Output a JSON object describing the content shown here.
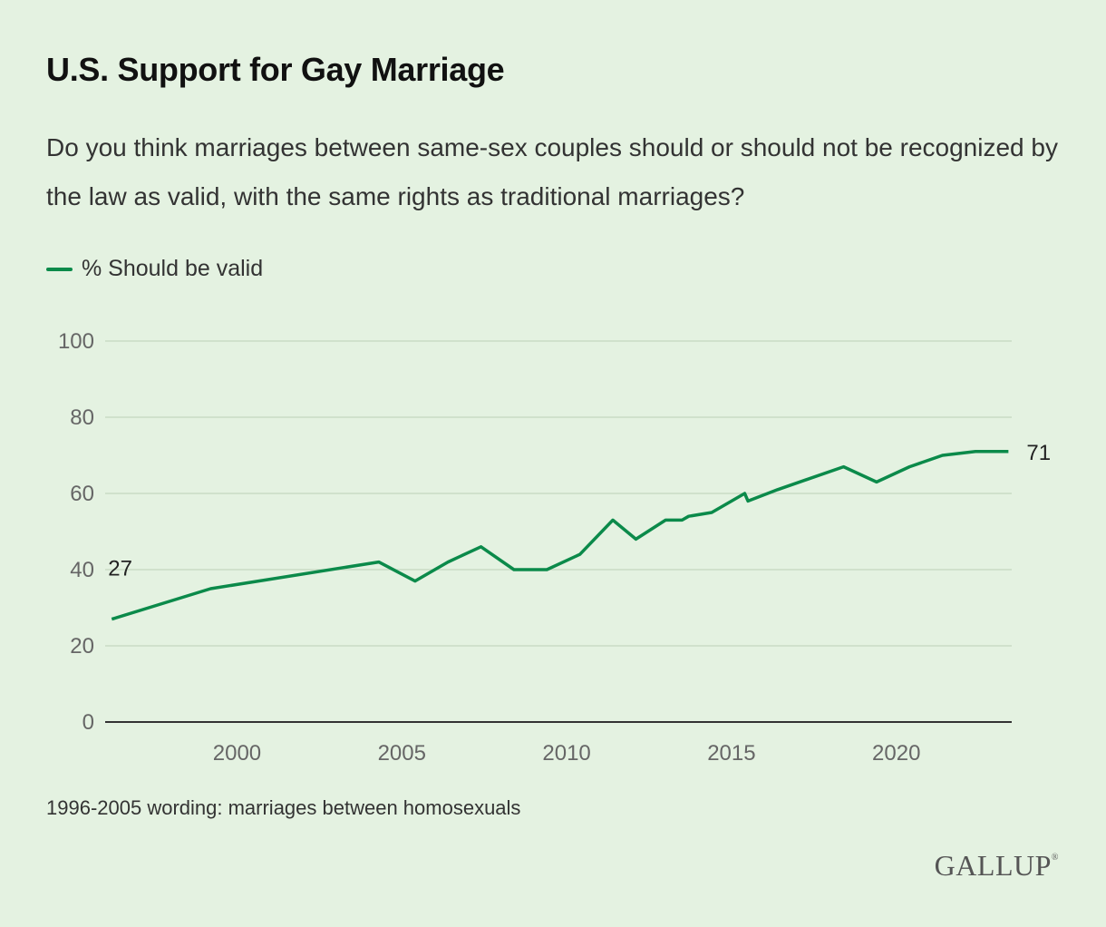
{
  "title": "U.S. Support for Gay Marriage",
  "subtitle": "Do you think marriages between same-sex couples should or should not be recognized by the law as valid, with the same rights as traditional marriages?",
  "footnote": "1996-2005 wording: marriages between homosexuals",
  "logo": "GALLUP",
  "colors": {
    "line": "#0b8a4a",
    "grid": "#c9dbc6",
    "axis": "#333333",
    "background": "#e4f2e1"
  },
  "chart_data": {
    "type": "line",
    "title": "U.S. Support for Gay Marriage",
    "xlabel": "",
    "ylabel": "",
    "xlim": [
      1996,
      2023.5
    ],
    "ylim": [
      0,
      100
    ],
    "x_ticks": [
      2000,
      2005,
      2010,
      2015,
      2020
    ],
    "y_ticks": [
      0,
      20,
      40,
      60,
      80,
      100
    ],
    "grid": true,
    "legend_position": "top-left",
    "series": [
      {
        "name": "% Should be valid",
        "color": "#0b8a4a",
        "x": [
          1996.2,
          1999.2,
          2004.3,
          2005.4,
          2006.4,
          2007.4,
          2008.4,
          2009.4,
          2010.4,
          2011.4,
          2012.1,
          2013.0,
          2013.5,
          2013.7,
          2014.4,
          2015.4,
          2015.5,
          2016.4,
          2018.4,
          2019.4,
          2020.4,
          2021.4,
          2022.4,
          2023.4
        ],
        "y": [
          27,
          35,
          42,
          37,
          42,
          46,
          40,
          40,
          44,
          53,
          48,
          53,
          53,
          54,
          55,
          60,
          58,
          61,
          67,
          63,
          67,
          70,
          71,
          71
        ]
      }
    ],
    "annotations": [
      {
        "label": "27",
        "at": "first-point"
      },
      {
        "label": "71",
        "at": "last-point"
      }
    ]
  }
}
